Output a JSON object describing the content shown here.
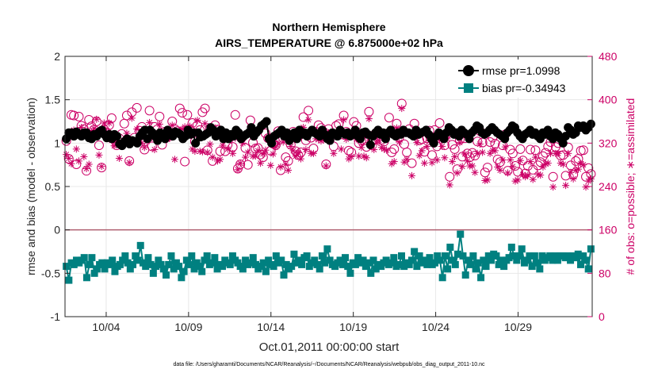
{
  "chart_data": {
    "type": "line",
    "title": "Northern Hemisphere",
    "subtitle": "AIRS_TEMPERATURE @ 6.875000e+02 hPa",
    "xlabel": "Oct.01,2011 00:00:00 start",
    "ylabel_left": "rmse and bias (model - observation)",
    "ylabel_right": "# of obs: o=possible; ∗=assimilated",
    "footnote": "data file: /Users/gharamti/Documents/NCAR/Reanalysis/~/Documents/NCAR/Reanalysis/webpub/obs_diag_output_2011-10.nc",
    "xlim": [
      1,
      33
    ],
    "ylim_left": [
      -1,
      2
    ],
    "ylim_right": [
      0,
      480
    ],
    "x_ticks": [
      3.5,
      8.5,
      13.5,
      18.5,
      23.5,
      28.5
    ],
    "x_tick_labels": [
      "10/04",
      "10/09",
      "10/14",
      "10/19",
      "10/24",
      "10/29"
    ],
    "y_left_ticks": [
      -1,
      -0.5,
      0,
      0.5,
      1,
      1.5,
      2
    ],
    "y_left_tick_labels": [
      "-1",
      "-0.5",
      "0",
      "0.5",
      "1",
      "1.5",
      "2"
    ],
    "y_right_ticks": [
      0,
      80,
      160,
      240,
      320,
      400,
      480
    ],
    "y_right_tick_labels": [
      "0",
      "80",
      "160",
      "240",
      "320",
      "400",
      "480"
    ],
    "grid": true,
    "legend_position": "top-right",
    "colors": {
      "rmse": "#000000",
      "bias": "#008080",
      "obs": "#cc0066",
      "zero_line": "#b06070",
      "grid": "#e8e8e8"
    },
    "series": [
      {
        "name": "rmse pr=1.0998",
        "axis": "left",
        "marker": "circle",
        "values": [
          1.05,
          1.12,
          1.12,
          1.08,
          1.13,
          1.1,
          1.08,
          1.12,
          1.12,
          1.06,
          1.05,
          1.1,
          1.08,
          1.13,
          1.15,
          1.1,
          1.06,
          1.1,
          1.05,
          1.1,
          1.08,
          0.99,
          0.97,
          1.02,
          1.05,
          0.99,
          1.03,
          1.02,
          1.0,
          1.08,
          1.12,
          1.15,
          1.05,
          1.15,
          1.12,
          1.08,
          1.03,
          1.12,
          1.1,
          1.05,
          1.15,
          1.12,
          1.08,
          1.13,
          1.12,
          1.1,
          1.05,
          1.08,
          1.15,
          1.1,
          1.12,
          1.0,
          1.12,
          1.07,
          1.08,
          1.1,
          1.12,
          1.18,
          1.15,
          1.08,
          1.1,
          1.15,
          1.05,
          1.12,
          1.05,
          1.1,
          1.08,
          1.15,
          1.12,
          1.05,
          1.08,
          1.1,
          1.12,
          1.18,
          1.08,
          1.12,
          1.15,
          1.2,
          1.22,
          1.25,
          1.05,
          1.0,
          1.08,
          1.1,
          1.12,
          1.15,
          1.08,
          1.12,
          1.03,
          1.1,
          1.12,
          1.05,
          1.15,
          1.1,
          1.12,
          1.08,
          1.12,
          1.15,
          1.12,
          1.1,
          1.08,
          1.15,
          1.1,
          1.05,
          1.03,
          1.12,
          1.1,
          1.08,
          1.15,
          1.12,
          1.1,
          1.12,
          1.08,
          1.1,
          1.15,
          1.08,
          1.05,
          1.12,
          1.13,
          1.1,
          0.98,
          1.08,
          1.12,
          1.15,
          1.1,
          1.12,
          1.05,
          1.12,
          1.15,
          1.1,
          1.08,
          1.12,
          1.1,
          1.15,
          1.12,
          1.12,
          1.1,
          1.08,
          1.15,
          1.1,
          1.12,
          1.13,
          1.15,
          1.1,
          1.05,
          1.0,
          1.08,
          1.12,
          1.1,
          1.05,
          1.12,
          1.18,
          1.15,
          1.1,
          1.12,
          1.08,
          1.15,
          1.12,
          1.1,
          1.05,
          1.12,
          1.15,
          1.2,
          1.18,
          1.12,
          1.1,
          1.12,
          1.15,
          1.18,
          1.15,
          1.12,
          1.1,
          1.08,
          1.05,
          1.12,
          1.15,
          1.2,
          1.18,
          1.12,
          1.08,
          1.05,
          1.1,
          1.12,
          1.15,
          1.1,
          1.12,
          1.08,
          1.05,
          1.12,
          1.1,
          1.15,
          1.08,
          1.05,
          1.12,
          1.1,
          1.05,
          1.0,
          1.08,
          1.18,
          1.15,
          1.1,
          1.12,
          1.2,
          1.18,
          1.2,
          1.15,
          1.18,
          1.22
        ]
      },
      {
        "name": "bias pr=-0.34943",
        "axis": "left",
        "marker": "square",
        "values": [
          -0.42,
          -0.58,
          -0.38,
          -0.4,
          -0.35,
          -0.38,
          -0.35,
          -0.32,
          -0.55,
          -0.4,
          -0.32,
          -0.5,
          -0.45,
          -0.4,
          -0.38,
          -0.45,
          -0.38,
          -0.4,
          -0.35,
          -0.48,
          -0.42,
          -0.4,
          -0.35,
          -0.3,
          -0.38,
          -0.45,
          -0.4,
          -0.3,
          -0.35,
          -0.18,
          -0.38,
          -0.42,
          -0.32,
          -0.4,
          -0.5,
          -0.42,
          -0.35,
          -0.4,
          -0.45,
          -0.52,
          -0.4,
          -0.3,
          -0.45,
          -0.38,
          -0.42,
          -0.55,
          -0.48,
          -0.35,
          -0.4,
          -0.3,
          -0.45,
          -0.38,
          -0.42,
          -0.48,
          -0.35,
          -0.3,
          -0.4,
          -0.38,
          -0.32,
          -0.45,
          -0.4,
          -0.42,
          -0.35,
          -0.38,
          -0.4,
          -0.3,
          -0.35,
          -0.38,
          -0.42,
          -0.45,
          -0.35,
          -0.4,
          -0.38,
          -0.32,
          -0.4,
          -0.45,
          -0.42,
          -0.38,
          -0.48,
          -0.35,
          -0.4,
          -0.42,
          -0.3,
          -0.38,
          -0.35,
          -0.52,
          -0.4,
          -0.45,
          -0.42,
          -0.28,
          -0.38,
          -0.35,
          -0.4,
          -0.32,
          -0.3,
          -0.42,
          -0.38,
          -0.35,
          -0.4,
          -0.45,
          -0.3,
          -0.38,
          -0.22,
          -0.35,
          -0.4,
          -0.42,
          -0.38,
          -0.35,
          -0.4,
          -0.32,
          -0.42,
          -0.5,
          -0.38,
          -0.4,
          -0.32,
          -0.38,
          -0.35,
          -0.42,
          -0.38,
          -0.5,
          -0.35,
          -0.45,
          -0.4,
          -0.42,
          -0.38,
          -0.35,
          -0.4,
          -0.38,
          -0.32,
          -0.42,
          -0.4,
          -0.3,
          -0.42,
          -0.38,
          -0.4,
          -0.35,
          -0.25,
          -0.42,
          -0.3,
          -0.38,
          -0.35,
          -0.4,
          -0.32,
          -0.4,
          -0.38,
          -0.3,
          -0.35,
          -0.55,
          -0.3,
          -0.45,
          -0.2,
          -0.35,
          -0.4,
          -0.28,
          -0.05,
          -0.3,
          -0.52,
          -0.35,
          -0.4,
          -0.3,
          -0.45,
          -0.38,
          -0.55,
          -0.35,
          -0.42,
          -0.3,
          -0.35,
          -0.28,
          -0.3,
          -0.4,
          -0.35,
          -0.42,
          -0.35,
          -0.32,
          -0.2,
          -0.3,
          -0.35,
          -0.3,
          -0.22,
          -0.38,
          -0.35,
          -0.3,
          -0.42,
          -0.3,
          -0.38,
          -0.45,
          -0.3,
          -0.35,
          -0.32,
          -0.3,
          -0.35,
          -0.3,
          -0.35,
          -0.3,
          -0.3,
          -0.32,
          -0.3,
          -0.35,
          -0.3,
          -0.32,
          -0.28,
          -0.4,
          -0.3,
          -0.35,
          -0.45,
          -0.22
        ]
      },
      {
        "name": "# of obs possible",
        "axis": "right",
        "marker": "circle-open",
        "values": [
          324,
          291,
          372,
          371,
          281,
          369,
          352,
          346,
          269,
          363,
          351,
          345,
          360,
          316,
          275,
          345,
          340,
          353,
          366,
          329,
          316,
          329,
          337,
          356,
          371,
          287,
          377,
          330,
          385,
          343,
          350,
          308,
          339,
          380,
          314,
          350,
          345,
          369,
          317,
          341,
          331,
          339,
          360,
          346,
          342,
          384,
          376,
          286,
          372,
          345,
          357,
          323,
          353,
          344,
          377,
          384,
          307,
          347,
          287,
          353,
          345,
          305,
          333,
          305,
          317,
          331,
          313,
          372,
          273,
          281,
          332,
          311,
          280,
          362,
          321,
          310,
          311,
          299,
          294,
          338,
          329,
          306,
          319,
          316,
          342,
          270,
          329,
          294,
          287,
          317,
          341,
          305,
          298,
          303,
          368,
          325,
          380,
          330,
          310,
          341,
          353,
          348,
          341,
          281,
          346,
          336,
          314,
          352,
          355,
          336,
          371,
          341,
          306,
          303,
          359,
          352,
          320,
          325,
          325,
          313,
          378,
          323,
          335,
          339,
          340,
          326,
          323,
          336,
          367,
          303,
          309,
          356,
          330,
          393,
          318,
          303,
          346,
          283,
          356,
          336,
          325,
          327,
          304,
          329,
          343,
          298,
          344,
          314,
          357,
          331,
          316,
          337,
          258,
          317,
          309,
          272,
          326,
          295,
          329,
          301,
          294,
          302,
          297,
          323,
          342,
          321,
          266,
          275,
          322,
          330,
          319,
          290,
          285,
          316,
          336,
          269,
          308,
          301,
          278,
          267,
          309,
          288,
          264,
          278,
          308,
          271,
          307,
          279,
          285,
          296,
          302,
          314,
          322,
          258,
          313,
          320,
          297,
          298,
          260,
          312,
          279,
          262,
          287,
          291,
          306,
          307,
          258,
          274,
          263
        ]
      },
      {
        "name": "# of obs assimilated",
        "axis": "right",
        "marker": "asterisk",
        "values": [
          299,
          292,
          282,
          344,
          309,
          287,
          349,
          295,
          273,
          281,
          341,
          347,
          364,
          298,
          277,
          357,
          340,
          357,
          325,
          315,
          319,
          292,
          316,
          322,
          338,
          284,
          366,
          324,
          346,
          327,
          320,
          312,
          323,
          358,
          330,
          308,
          332,
          355,
          337,
          333,
          327,
          329,
          353,
          290,
          339,
          342,
          346,
          350,
          334,
          351,
          309,
          305,
          362,
          305,
          304,
          356,
          303,
          318,
          294,
          348,
          287,
          290,
          316,
          338,
          309,
          327,
          301,
          329,
          271,
          283,
          320,
          294,
          303,
          350,
          296,
          296,
          306,
          283,
          300,
          307,
          332,
          279,
          300,
          313,
          319,
          276,
          322,
          281,
          270,
          314,
          306,
          296,
          302,
          291,
          349,
          308,
          363,
          301,
          301,
          328,
          327,
          324,
          326,
          278,
          339,
          326,
          301,
          337,
          337,
          309,
          363,
          327,
          291,
          295,
          333,
          328,
          296,
          312,
          296,
          293,
          365,
          313,
          308,
          320,
          325,
          312,
          309,
          307,
          337,
          282,
          286,
          348,
          322,
          384,
          285,
          290,
          336,
          260,
          340,
          321,
          297,
          306,
          283,
          314,
          324,
          284,
          318,
          289,
          326,
          314,
          293,
          328,
          243,
          286,
          295,
          265,
          321,
          277,
          300,
          287,
          278,
          278,
          266,
          301,
          318,
          303,
          251,
          252,
          301,
          307,
          306,
          276,
          270,
          289,
          313,
          265,
          289,
          277,
          250,
          252,
          288,
          262,
          258,
          261,
          286,
          253,
          294,
          262,
          261,
          276,
          282,
          283,
          301,
          239,
          301,
          301,
          283,
          281,
          242,
          301,
          266,
          254,
          270,
          272,
          282,
          280,
          239,
          250,
          254
        ]
      }
    ],
    "legend": [
      "rmse pr=1.0998",
      "bias pr=-0.34943"
    ]
  }
}
